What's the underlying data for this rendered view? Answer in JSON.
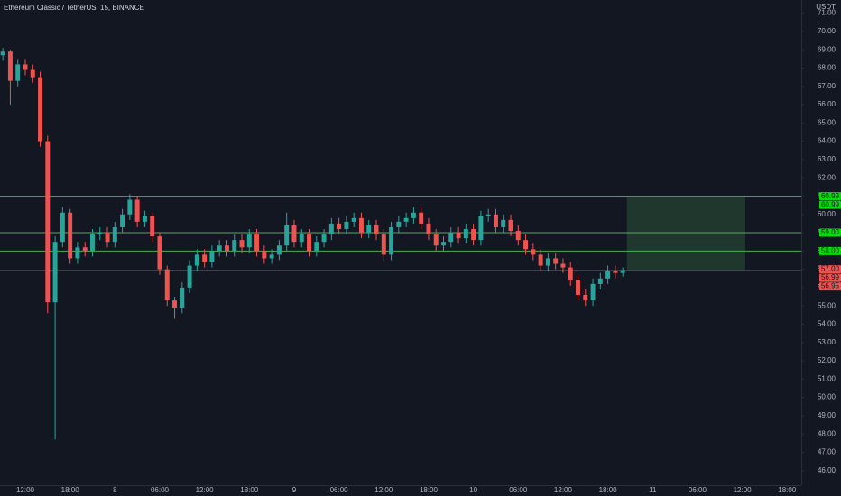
{
  "chart_data": {
    "type": "candlestick",
    "title": "Ethereum Classic / TetherUS, 15, BINANCE",
    "y_axis_label": "USDT",
    "x": [
      -3,
      -2,
      -1,
      0,
      1,
      2,
      3,
      4,
      5,
      6,
      7,
      8,
      9,
      10,
      11,
      12,
      13,
      14,
      15,
      16,
      17,
      18,
      19,
      20,
      21,
      22,
      23,
      24,
      25,
      26,
      27,
      28,
      29,
      30,
      31,
      32,
      33,
      34,
      35,
      36,
      37,
      38,
      39,
      40,
      41,
      42,
      43,
      44,
      45,
      46,
      47,
      48,
      49,
      50,
      51,
      52,
      53,
      54,
      55,
      56,
      57,
      58,
      59,
      60,
      61,
      62,
      63,
      64,
      65,
      66,
      67,
      68,
      69,
      70,
      71,
      72,
      73,
      74,
      75,
      76,
      77,
      78,
      79,
      80
    ],
    "open": [
      68.7,
      68.9,
      67.3,
      68.2,
      67.9,
      67.5,
      64.0,
      55.2,
      58.5,
      60.1,
      57.6,
      58.2,
      58.0,
      58.9,
      59.0,
      58.5,
      59.3,
      60.0,
      60.8,
      59.6,
      59.9,
      58.8,
      57.0,
      55.3,
      54.9,
      56.0,
      57.2,
      57.8,
      57.4,
      58.0,
      58.3,
      58.0,
      58.6,
      58.2,
      58.9,
      58.0,
      57.6,
      57.8,
      58.3,
      59.4,
      58.5,
      58.9,
      58.0,
      58.5,
      58.9,
      59.5,
      59.2,
      59.6,
      59.8,
      59.0,
      59.4,
      58.9,
      57.8,
      59.3,
      59.6,
      59.8,
      60.1,
      59.5,
      58.9,
      58.3,
      58.5,
      59.0,
      58.7,
      59.2,
      58.6,
      59.9,
      60.0,
      59.3,
      59.7,
      59.1,
      58.6,
      58.1,
      57.8,
      57.2,
      57.6,
      57.3,
      57.1,
      56.4,
      55.6,
      55.3,
      56.2,
      56.5,
      56.9,
      56.8
    ],
    "high": [
      69.1,
      69.0,
      68.5,
      68.5,
      68.2,
      67.8,
      64.3,
      58.8,
      60.4,
      60.3,
      58.5,
      58.5,
      59.2,
      59.3,
      59.3,
      59.6,
      60.3,
      61.1,
      61.0,
      60.2,
      60.1,
      59.0,
      57.2,
      55.5,
      56.3,
      57.5,
      58.1,
      58.1,
      58.3,
      58.6,
      58.6,
      58.9,
      58.9,
      59.2,
      59.2,
      58.3,
      58.1,
      58.6,
      60.1,
      59.7,
      59.2,
      59.2,
      58.8,
      59.2,
      59.8,
      59.8,
      59.9,
      60.1,
      60.1,
      59.7,
      59.7,
      59.2,
      59.6,
      59.9,
      60.1,
      60.4,
      60.4,
      59.8,
      59.2,
      58.8,
      59.3,
      59.3,
      59.5,
      59.5,
      60.2,
      60.3,
      60.3,
      60.0,
      60.0,
      59.4,
      58.9,
      58.4,
      58.1,
      57.9,
      57.9,
      57.6,
      57.4,
      56.7,
      55.9,
      56.5,
      56.8,
      57.2,
      57.2,
      57.1
    ],
    "low": [
      68.4,
      66.0,
      67.0,
      67.6,
      67.2,
      63.7,
      54.6,
      47.7,
      58.2,
      57.3,
      57.3,
      57.7,
      57.7,
      58.6,
      58.2,
      58.2,
      59.0,
      59.7,
      59.3,
      59.3,
      58.5,
      56.7,
      55.0,
      54.3,
      54.6,
      55.7,
      56.9,
      57.1,
      57.1,
      57.7,
      57.7,
      57.7,
      57.9,
      57.9,
      57.7,
      57.3,
      57.3,
      57.5,
      58.0,
      58.2,
      58.2,
      57.7,
      57.7,
      58.2,
      58.6,
      58.9,
      58.9,
      59.3,
      58.7,
      58.7,
      58.6,
      57.5,
      57.5,
      59.0,
      59.3,
      59.5,
      59.2,
      58.6,
      58.0,
      58.0,
      58.2,
      58.4,
      58.4,
      58.3,
      58.3,
      59.6,
      59.0,
      59.0,
      58.8,
      58.3,
      57.8,
      57.5,
      56.9,
      56.9,
      57.0,
      56.8,
      56.1,
      55.3,
      55.0,
      55.0,
      55.9,
      56.2,
      56.5,
      56.6
    ],
    "close": [
      68.9,
      67.3,
      68.2,
      67.9,
      67.5,
      64.0,
      55.2,
      58.5,
      60.1,
      57.6,
      58.2,
      58.0,
      58.9,
      59.0,
      58.5,
      59.3,
      60.0,
      60.8,
      59.6,
      59.9,
      58.8,
      57.0,
      55.3,
      54.9,
      56.0,
      57.2,
      57.8,
      57.4,
      58.0,
      58.3,
      58.0,
      58.6,
      58.2,
      58.9,
      58.0,
      57.6,
      57.8,
      58.3,
      59.4,
      58.5,
      58.9,
      58.0,
      58.5,
      58.9,
      59.5,
      59.2,
      59.6,
      59.8,
      59.0,
      59.4,
      58.9,
      57.8,
      59.3,
      59.6,
      59.8,
      60.1,
      59.5,
      58.9,
      58.3,
      58.5,
      59.0,
      58.7,
      59.2,
      58.6,
      59.9,
      60.0,
      59.3,
      59.7,
      59.1,
      58.6,
      58.1,
      57.8,
      57.2,
      57.6,
      57.3,
      57.1,
      56.4,
      55.6,
      55.3,
      56.2,
      56.5,
      56.9,
      56.8,
      56.95
    ],
    "up_color": "#26a69a",
    "down_color": "#ef5350",
    "xlim": [
      -3.38,
      103.9
    ],
    "xticks": [
      {
        "value": 0,
        "label": "12:00"
      },
      {
        "value": 6,
        "label": "18:00"
      },
      {
        "value": 12,
        "label": "8"
      },
      {
        "value": 18,
        "label": "06:00"
      },
      {
        "value": 24,
        "label": "12:00"
      },
      {
        "value": 30,
        "label": "18:00"
      },
      {
        "value": 36,
        "label": "9"
      },
      {
        "value": 42,
        "label": "06:00"
      },
      {
        "value": 48,
        "label": "12:00"
      },
      {
        "value": 54,
        "label": "18:00"
      },
      {
        "value": 60,
        "label": "10"
      },
      {
        "value": 66,
        "label": "06:00"
      },
      {
        "value": 72,
        "label": "12:00"
      },
      {
        "value": 78,
        "label": "18:00"
      },
      {
        "value": 84,
        "label": "11"
      },
      {
        "value": 90,
        "label": "06:00"
      },
      {
        "value": 96,
        "label": "12:00"
      },
      {
        "value": 102,
        "label": "18:00"
      }
    ],
    "ylim": [
      45.2,
      71.72
    ],
    "yticks": [
      {
        "value": 46,
        "label": "46.00"
      },
      {
        "value": 47,
        "label": "47.00"
      },
      {
        "value": 48,
        "label": "48.00"
      },
      {
        "value": 49,
        "label": "49.00"
      },
      {
        "value": 50,
        "label": "50.00"
      },
      {
        "value": 51,
        "label": "51.00"
      },
      {
        "value": 52,
        "label": "52.00"
      },
      {
        "value": 53,
        "label": "53.00"
      },
      {
        "value": 54,
        "label": "54.00"
      },
      {
        "value": 55,
        "label": "55.00"
      },
      {
        "value": 56,
        "label": "56.00"
      },
      {
        "value": 57,
        "label": "57.00"
      },
      {
        "value": 58,
        "label": "58.00"
      },
      {
        "value": 59,
        "label": "59.00"
      },
      {
        "value": 60,
        "label": "60.00"
      },
      {
        "value": 61,
        "label": "61.00"
      },
      {
        "value": 62,
        "label": "62.00"
      },
      {
        "value": 63,
        "label": "63.00"
      },
      {
        "value": 64,
        "label": "64.00"
      },
      {
        "value": 65,
        "label": "65.00"
      },
      {
        "value": 66,
        "label": "66.00"
      },
      {
        "value": 67,
        "label": "67.00"
      },
      {
        "value": 68,
        "label": "68.00"
      },
      {
        "value": 69,
        "label": "69.00"
      },
      {
        "value": 70,
        "label": "70.00"
      },
      {
        "value": 71,
        "label": "71.00"
      }
    ],
    "grid": false,
    "hlines": [
      {
        "value": 60.99,
        "color": "#4caf50"
      },
      {
        "value": 59,
        "color": "#4caf50"
      },
      {
        "value": 58,
        "color": "#4caf50"
      },
      {
        "value": 56.95,
        "color": "#434651"
      }
    ],
    "zone": {
      "x": [
        80.55,
        96.4
      ],
      "y": [
        56.95,
        60.99
      ],
      "color": "#4caf50"
    },
    "price_labels": [
      {
        "value": 60.99,
        "color": "#00e000"
      },
      {
        "value": 60.99,
        "color": "#00e000"
      },
      {
        "value": 59,
        "label": "59.00",
        "color": "#00e000"
      },
      {
        "value": 58,
        "label": "58.00",
        "color": "#00e000"
      },
      {
        "value": 57,
        "label": "57.00",
        "color": "#ef5350"
      },
      {
        "value": 56.99,
        "color": "#ef5350"
      },
      {
        "value": 56.95,
        "color": "#ef5350"
      }
    ]
  }
}
